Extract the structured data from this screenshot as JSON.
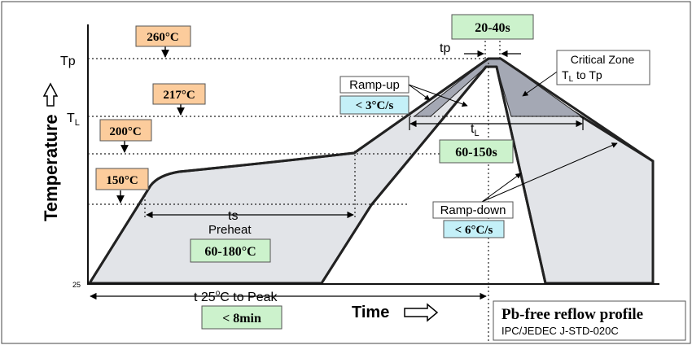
{
  "axes": {
    "y_label": "Temperature",
    "x_label": "Time",
    "tp": "Tp",
    "tl_main": "T",
    "tl_sub": "L",
    "y_min": "25"
  },
  "temperatures": {
    "t260": "260°C",
    "t217": "217°C",
    "t200": "200°C",
    "t150": "150°C"
  },
  "durations": {
    "peak_time": "20-40s",
    "tl_time": "60-150s",
    "preheat_temp": "60-180°C",
    "total_time": "< 8min"
  },
  "rates": {
    "ramp_up_label": "Ramp-up",
    "ramp_up_value": "< 3°C/s",
    "ramp_down_label": "Ramp-down",
    "ramp_down_value": "< 6°C/s"
  },
  "annotations": {
    "tp_small": "tp",
    "tl_small_main": "t",
    "tl_small_sub": "L",
    "ts": "ts",
    "preheat": "Preheat",
    "total_prefix": "t  25",
    "total_suffix": "C to Peak",
    "total_degree": "o",
    "critical_line1": "Critical Zone",
    "critical_line2_main": "T",
    "critical_line2_sub": "L",
    "critical_line2_rest": " to Tp"
  },
  "title": {
    "main": "Pb-free reflow profile",
    "sub": "IPC/JEDEC J-STD-020C"
  },
  "colors": {
    "profile_fill": "#e2e4e8",
    "critical_fill": "#a4a8b4",
    "orange_box": "#fccc9c",
    "green_box": "#ccf2cc",
    "cyan_box": "#c4f0f8"
  }
}
